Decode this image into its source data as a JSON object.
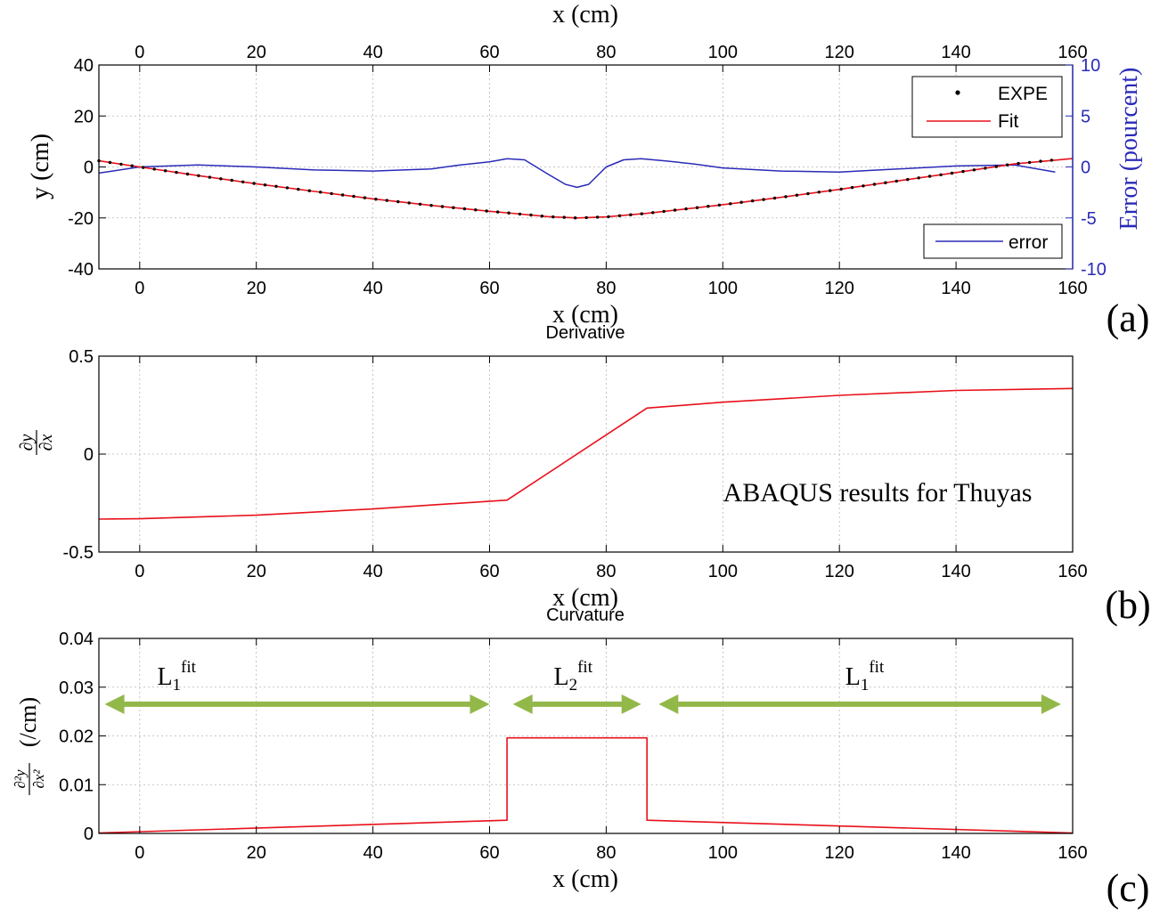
{
  "colors": {
    "fit": "#e8101a",
    "expe": "#000000",
    "error": "#2a2ab8",
    "arrow": "#93b84a"
  },
  "chart_data": [
    {
      "id": "a",
      "type": "line",
      "panel_label": "(a)",
      "title": "",
      "xlabel_top": "x (cm)",
      "xlabel": "x (cm)",
      "ylabel": "y (cm)",
      "ylabel_right": "Error (pourcent)",
      "xlim": [
        -7,
        160
      ],
      "ylim": [
        -40,
        40
      ],
      "ylim_right": [
        -10,
        10
      ],
      "xticks": [
        0,
        20,
        40,
        60,
        80,
        100,
        120,
        140,
        160
      ],
      "xtick_labels": [
        "0",
        "20",
        "40",
        "60",
        "80",
        "100",
        "120",
        "140",
        "160"
      ],
      "yticks": [
        -40,
        -20,
        0,
        20,
        40
      ],
      "ytick_labels": [
        "-40",
        "-20",
        "0",
        "20",
        "40"
      ],
      "yticks_right": [
        -10,
        -5,
        0,
        5,
        10
      ],
      "ytick_labels_right": [
        "-10",
        "-5",
        "0",
        "5",
        "10"
      ],
      "grid": true,
      "legend": [
        {
          "label": "EXPE",
          "style": "dot"
        },
        {
          "label": "Fit",
          "style": "line"
        }
      ],
      "legend_placement": "top-right",
      "legend_right": [
        {
          "label": "error",
          "style": "line"
        }
      ],
      "legend_right_placement": "bottom-right",
      "series": [
        {
          "name": "Fit",
          "axis": "left",
          "x": [
            -7,
            0,
            10,
            20,
            30,
            40,
            50,
            60,
            63,
            70,
            75,
            80,
            87,
            100,
            110,
            120,
            130,
            140,
            150,
            160
          ],
          "y": [
            2.4,
            0,
            -3.4,
            -6.6,
            -9.6,
            -12.5,
            -15.1,
            -17.4,
            -18.0,
            -19.5,
            -20.0,
            -19.6,
            -18.2,
            -14.8,
            -11.9,
            -8.8,
            -5.5,
            -2.2,
            1.2,
            3.3
          ]
        },
        {
          "name": "EXPE",
          "axis": "left",
          "x": [
            -7,
            0,
            10,
            20,
            30,
            40,
            50,
            60,
            63,
            70,
            75,
            80,
            87,
            100,
            110,
            120,
            130,
            140,
            150,
            157
          ],
          "y": [
            2.4,
            0,
            -3.4,
            -6.6,
            -9.6,
            -12.5,
            -15.1,
            -17.4,
            -18.0,
            -19.5,
            -20.0,
            -19.6,
            -18.2,
            -14.8,
            -11.9,
            -8.8,
            -5.5,
            -2.2,
            1.2,
            2.8
          ]
        },
        {
          "name": "error",
          "axis": "right",
          "x": [
            -7,
            0,
            10,
            20,
            30,
            40,
            50,
            55,
            60,
            63,
            66,
            70,
            73,
            75,
            77,
            80,
            83,
            86,
            90,
            95,
            100,
            110,
            120,
            130,
            140,
            150,
            157
          ],
          "y": [
            -0.6,
            0.0,
            0.2,
            0.0,
            -0.3,
            -0.4,
            -0.2,
            0.2,
            0.5,
            0.8,
            0.7,
            -0.7,
            -1.7,
            -2.0,
            -1.7,
            0.0,
            0.7,
            0.8,
            0.6,
            0.3,
            -0.1,
            -0.4,
            -0.5,
            -0.2,
            0.1,
            0.2,
            -0.5
          ]
        }
      ]
    },
    {
      "id": "b",
      "type": "line",
      "panel_label": "(b)",
      "title": "Derivative",
      "annotation": "ABAQUS results for Thuyas",
      "xlabel": "x (cm)",
      "ylabel": "∂y/∂x",
      "xlim": [
        -7,
        160
      ],
      "ylim": [
        -0.5,
        0.5
      ],
      "xticks": [
        0,
        20,
        40,
        60,
        80,
        100,
        120,
        140,
        160
      ],
      "xtick_labels": [
        "0",
        "20",
        "40",
        "60",
        "80",
        "100",
        "120",
        "140",
        "160"
      ],
      "yticks": [
        -0.5,
        0,
        0.5
      ],
      "ytick_labels": [
        "-0.5",
        "0",
        "0.5"
      ],
      "grid": true,
      "series": [
        {
          "x": [
            -7,
            0,
            20,
            40,
            50,
            63,
            87,
            100,
            120,
            140,
            160
          ],
          "y": [
            -0.332,
            -0.33,
            -0.312,
            -0.28,
            -0.26,
            -0.235,
            0.235,
            0.265,
            0.3,
            0.325,
            0.335
          ]
        }
      ]
    },
    {
      "id": "c",
      "type": "line",
      "panel_label": "(c)",
      "title": "Curvature",
      "xlabel": "x (cm)",
      "ylabel": "∂²y/∂x² (/cm)",
      "xlim": [
        -7,
        160
      ],
      "ylim": [
        0,
        0.04
      ],
      "xticks": [
        0,
        20,
        40,
        60,
        80,
        100,
        120,
        140,
        160
      ],
      "xtick_labels": [
        "0",
        "20",
        "40",
        "60",
        "80",
        "100",
        "120",
        "140",
        "160"
      ],
      "yticks": [
        0,
        0.01,
        0.02,
        0.03,
        0.04
      ],
      "ytick_labels": [
        "0",
        "0.01",
        "0.02",
        "0.03",
        "0.04"
      ],
      "grid": true,
      "series": [
        {
          "x": [
            -7,
            63,
            63,
            87,
            87,
            160
          ],
          "y": [
            0.0001,
            0.0027,
            0.0196,
            0.0196,
            0.0027,
            0.0001
          ]
        }
      ],
      "regions": [
        {
          "label_main": "L",
          "sub": "1",
          "sup": "fit",
          "x_start": -6,
          "x_end": 60,
          "y": 0.0265,
          "label_x": 3
        },
        {
          "label_main": "L",
          "sub": "2",
          "sup": "fit",
          "x_start": 64,
          "x_end": 86,
          "y": 0.0265,
          "label_x": 71
        },
        {
          "label_main": "L",
          "sub": "1",
          "sup": "fit",
          "x_start": 89,
          "x_end": 158,
          "y": 0.0265,
          "label_x": 121
        }
      ]
    }
  ]
}
